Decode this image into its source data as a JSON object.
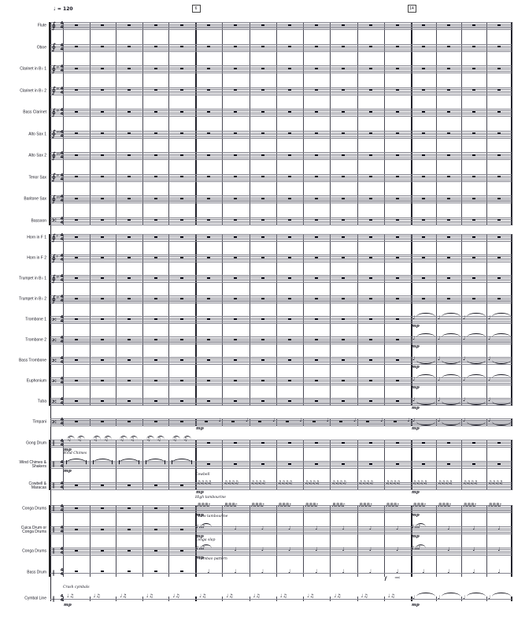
{
  "score": {
    "tempo": "♩ = 120",
    "time_signature": {
      "numerator": "4",
      "denominator": "4"
    },
    "rehearsal_marks": [
      {
        "label": "6"
      },
      {
        "label": "14"
      }
    ],
    "ink_color": "#14141e",
    "staff_line_color": "#83838d"
  },
  "glyphs": {
    "treble_clef": "∮",
    "bass_clef": "ɔ:",
    "percussion_clef": "‖",
    "sharp": "♯",
    "quarter_note": "♩",
    "eighth_note": "♪",
    "beamed_eighths": "♫",
    "beamed_sixteenths": "♬",
    "whole_rest": "wr"
  },
  "dynamics": {
    "mp": "mp",
    "f": "f"
  },
  "instruments": [
    {
      "label": "Flute",
      "clef": "treble",
      "sharps": 0,
      "lines": 5,
      "events": []
    },
    {
      "label": "Oboe",
      "clef": "treble",
      "sharps": 0,
      "lines": 5,
      "events": []
    },
    {
      "label": "Clarinet in B♭ 1",
      "clef": "treble",
      "sharps": 2,
      "lines": 5,
      "events": []
    },
    {
      "label": "Clarinet in B♭ 2",
      "clef": "treble",
      "sharps": 2,
      "lines": 5,
      "events": []
    },
    {
      "label": "Bass Clarinet",
      "clef": "treble",
      "sharps": 2,
      "lines": 5,
      "events": []
    },
    {
      "label": "Alto Sax 1",
      "clef": "treble",
      "sharps": 3,
      "lines": 5,
      "events": []
    },
    {
      "label": "Alto Sax 2",
      "clef": "treble",
      "sharps": 3,
      "lines": 5,
      "events": []
    },
    {
      "label": "Tenor Sax",
      "clef": "treble",
      "sharps": 2,
      "lines": 5,
      "events": []
    },
    {
      "label": "Baritone Sax",
      "clef": "treble",
      "sharps": 3,
      "lines": 5,
      "events": []
    },
    {
      "label": "Bassoon",
      "clef": "bass",
      "sharps": 0,
      "lines": 5,
      "events": []
    },
    {
      "label": "Horn in F 1",
      "clef": "treble",
      "sharps": 1,
      "lines": 5,
      "events": []
    },
    {
      "label": "Horn in F 2",
      "clef": "treble",
      "sharps": 1,
      "lines": 5,
      "events": []
    },
    {
      "label": "Trumpet in B♭ 1",
      "clef": "treble",
      "sharps": 2,
      "lines": 5,
      "events": []
    },
    {
      "label": "Trumpet in B♭ 2",
      "clef": "treble",
      "sharps": 2,
      "lines": 5,
      "events": []
    },
    {
      "label": "Trombone 1",
      "clef": "bass",
      "sharps": 0,
      "lines": 5,
      "events": [
        {
          "from": 13,
          "to": 16,
          "t": "tieA"
        },
        {
          "m": 13,
          "dyn": "mp"
        }
      ]
    },
    {
      "label": "Trombone 2",
      "clef": "bass",
      "sharps": 0,
      "lines": 5,
      "events": [
        {
          "from": 13,
          "to": 16,
          "t": "tieA"
        },
        {
          "m": 13,
          "dyn": "mp"
        }
      ]
    },
    {
      "label": "Bass Trombone",
      "clef": "bass",
      "sharps": 0,
      "lines": 5,
      "events": [
        {
          "from": 13,
          "to": 16,
          "t": "tieB"
        },
        {
          "m": 13,
          "dyn": "mp"
        }
      ]
    },
    {
      "label": "Euphonium",
      "clef": "bass",
      "sharps": 0,
      "lines": 5,
      "events": [
        {
          "from": 13,
          "to": 16,
          "t": "tieA"
        },
        {
          "m": 13,
          "dyn": "mp"
        }
      ]
    },
    {
      "label": "Tuba",
      "clef": "bass",
      "sharps": 0,
      "lines": 5,
      "events": [
        {
          "from": 13,
          "to": 16,
          "t": "tieB"
        },
        {
          "m": 13,
          "dyn": "mp"
        }
      ]
    },
    {
      "label": "Timpani",
      "clef": "bass",
      "sharps": 0,
      "lines": 5,
      "events": [
        {
          "from": 5,
          "to": 12,
          "t": "hitend"
        },
        {
          "m": 5,
          "dyn": "mp"
        },
        {
          "from": 13,
          "to": 16,
          "t": "tieB"
        },
        {
          "m": 13,
          "dyn": "mp"
        }
      ]
    },
    {
      "label": "Gong Drum",
      "clef": "perc",
      "sharps": 0,
      "lines": 5,
      "events": [
        {
          "from": 0,
          "to": 4,
          "t": "gong"
        },
        {
          "m": 0,
          "dyn": "mp"
        }
      ]
    },
    {
      "label": "Wind Chimes &\nShakers",
      "clef": "perc",
      "sharps": 0,
      "lines": 5,
      "events": [
        {
          "from": 0,
          "to": 4,
          "t": "wave"
        },
        {
          "m": 0,
          "dyn": "mp",
          "label_above": "Wind Chimes"
        }
      ]
    },
    {
      "label": "Cowbell &\nMaracas",
      "clef": "perc",
      "sharps": 0,
      "lines": 5,
      "events": [
        {
          "from": 5,
          "to": 16,
          "t": "eighths"
        },
        {
          "m": 5,
          "dyn": "mp",
          "label_above": "Cowbell"
        },
        {
          "m": 13,
          "dyn": "mp"
        }
      ]
    },
    {
      "label": "Conga Drums",
      "clef": "perc",
      "sharps": 0,
      "lines": 5,
      "events": [
        {
          "from": 5,
          "to": 16,
          "t": "sixt"
        },
        {
          "m": 5,
          "dyn": "mp",
          "label_above": "High tambourine",
          "label_below": "Low tambourine"
        },
        {
          "m": 13,
          "dyn": "mp"
        }
      ]
    },
    {
      "label": "Cuica Drum or\nConga Drums",
      "clef": "perc",
      "sharps": 0,
      "lines": 5,
      "events": [
        {
          "m": 5,
          "t": "fig2",
          "dyn": "mp"
        },
        {
          "from": 6,
          "to": 12,
          "t": "hit"
        },
        {
          "m": 13,
          "t": "fig2",
          "dyn": "mp"
        },
        {
          "from": 14,
          "to": 16,
          "t": "hit"
        }
      ]
    },
    {
      "label": "Conga Drums",
      "clef": "perc",
      "sharps": 0,
      "lines": 5,
      "events": [
        {
          "m": 5,
          "t": "fig2",
          "dyn": "mp",
          "label_above": "Conga slap",
          "label_below": "Tumbao pattern"
        },
        {
          "from": 6,
          "to": 12,
          "t": "hit"
        },
        {
          "m": 13,
          "t": "fig2"
        },
        {
          "from": 14,
          "to": 16,
          "t": "hit"
        }
      ]
    },
    {
      "label": "Bass Drum",
      "clef": "perc",
      "sharps": 0,
      "lines": 1,
      "events": [
        {
          "from": 5,
          "to": 16,
          "t": "hit"
        },
        {
          "m": 12,
          "dyn": "f",
          "hairpin": true
        }
      ]
    },
    {
      "label": "Cymbal Line",
      "clef": "perc",
      "sharps": 0,
      "lines": 1,
      "events": [
        {
          "from": 0,
          "to": 12,
          "t": "cym"
        },
        {
          "m": 0,
          "dyn": "mp",
          "label_above": "Crash cymbals"
        },
        {
          "from": 13,
          "to": 16,
          "t": "tieA"
        },
        {
          "m": 13,
          "dyn": "mp"
        }
      ]
    }
  ]
}
